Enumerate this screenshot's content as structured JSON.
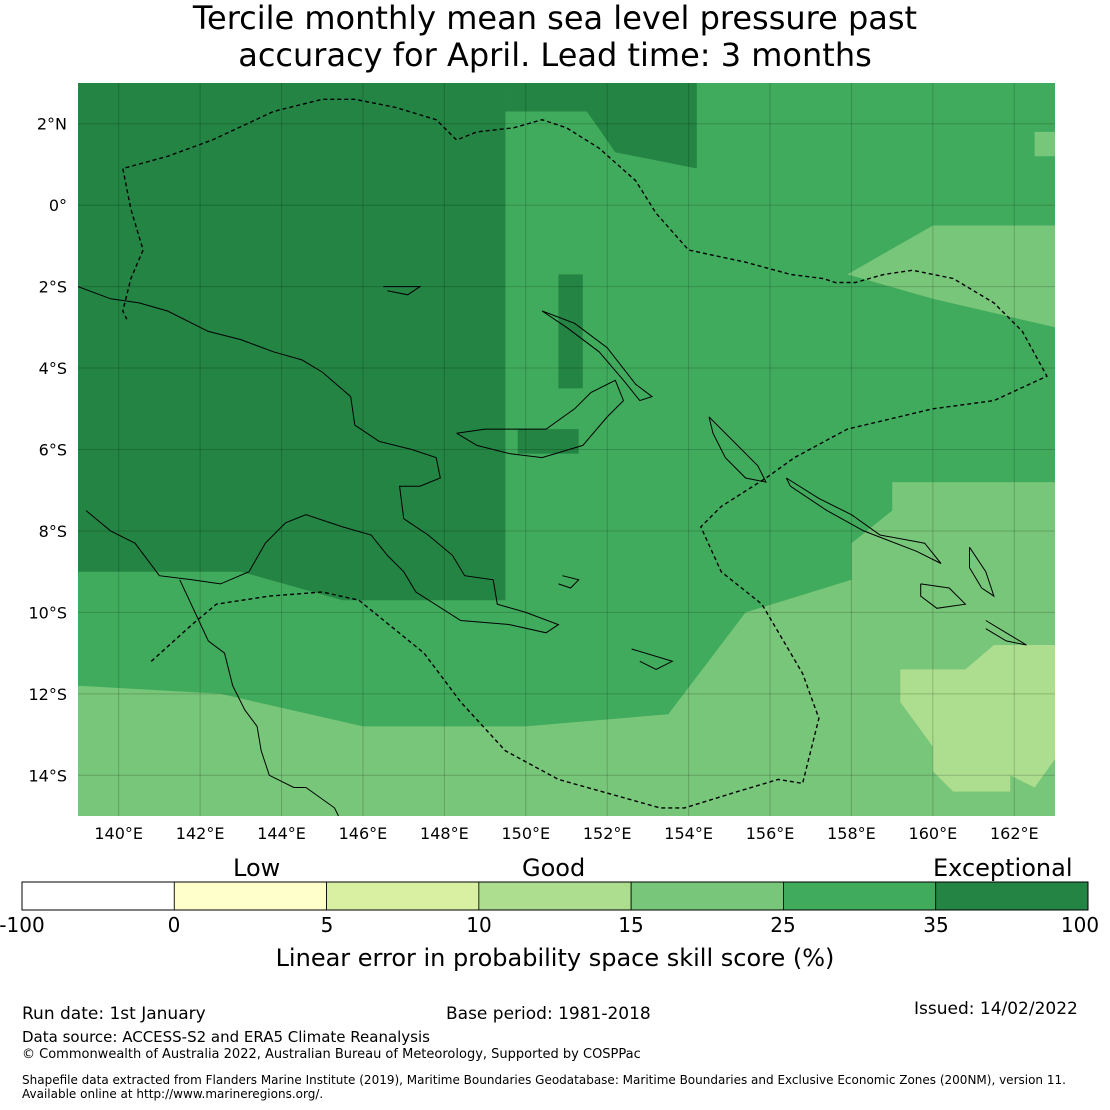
{
  "title": {
    "line1": "Tercile monthly mean sea level pressure past",
    "line2": "accuracy for April. Lead time: 3 months"
  },
  "map": {
    "lon_range": [
      139.0,
      163.0
    ],
    "lat_range": [
      -15.0,
      3.0
    ],
    "lon_ticks": [
      {
        "value": 140,
        "label": "140°E"
      },
      {
        "value": 142,
        "label": "142°E"
      },
      {
        "value": 144,
        "label": "144°E"
      },
      {
        "value": 146,
        "label": "146°E"
      },
      {
        "value": 148,
        "label": "148°E"
      },
      {
        "value": 150,
        "label": "150°E"
      },
      {
        "value": 152,
        "label": "152°E"
      },
      {
        "value": 154,
        "label": "154°E"
      },
      {
        "value": 156,
        "label": "156°E"
      },
      {
        "value": 158,
        "label": "158°E"
      },
      {
        "value": 160,
        "label": "160°E"
      },
      {
        "value": 162,
        "label": "162°E"
      }
    ],
    "lat_ticks": [
      {
        "value": 2,
        "label": "2°N"
      },
      {
        "value": 0,
        "label": "0°"
      },
      {
        "value": -2,
        "label": "2°S"
      },
      {
        "value": -4,
        "label": "4°S"
      },
      {
        "value": -6,
        "label": "6°S"
      },
      {
        "value": -8,
        "label": "8°S"
      },
      {
        "value": -10,
        "label": "10°S"
      },
      {
        "value": -12,
        "label": "12°S"
      },
      {
        "value": -14,
        "label": "14°S"
      }
    ],
    "regions": [
      {
        "name": "exceptional-west",
        "category": 6,
        "polygon": [
          [
            139,
            3
          ],
          [
            149.5,
            3
          ],
          [
            149.5,
            -9.7
          ],
          [
            145.5,
            -9.7
          ],
          [
            143,
            -9
          ],
          [
            139,
            -9
          ]
        ]
      },
      {
        "name": "exceptional-north",
        "category": 6,
        "polygon": [
          [
            149.5,
            3
          ],
          [
            154.2,
            3
          ],
          [
            154.2,
            0.9
          ],
          [
            152.2,
            1.3
          ],
          [
            151.5,
            2.3
          ],
          [
            149.5,
            2.3
          ]
        ]
      },
      {
        "name": "exceptional-central-a",
        "category": 6,
        "polygon": [
          [
            150.8,
            -1.7
          ],
          [
            151.4,
            -1.7
          ],
          [
            151.4,
            -4.5
          ],
          [
            150.8,
            -4.5
          ]
        ]
      },
      {
        "name": "exceptional-central-b",
        "category": 6,
        "polygon": [
          [
            149.8,
            -5.5
          ],
          [
            151.3,
            -5.5
          ],
          [
            151.3,
            -6.1
          ],
          [
            149.8,
            -6.1
          ]
        ]
      },
      {
        "name": "exceptional-central-c",
        "category": 6,
        "polygon": [
          [
            146.5,
            -6.2
          ],
          [
            147.3,
            -6.2
          ],
          [
            147.3,
            -6.7
          ],
          [
            146.5,
            -6.7
          ]
        ]
      },
      {
        "name": "good-east",
        "category": 4,
        "polygon": [
          [
            160,
            -0.5
          ],
          [
            163,
            -0.5
          ],
          [
            163,
            -3
          ],
          [
            160,
            -2.3
          ],
          [
            157.9,
            -1.7
          ]
        ]
      },
      {
        "name": "good-southeast",
        "category": 4,
        "polygon": [
          [
            159,
            -6.8
          ],
          [
            163,
            -6.8
          ],
          [
            163,
            -15
          ],
          [
            139,
            -15
          ],
          [
            139,
            -11.8
          ],
          [
            142.5,
            -12
          ],
          [
            146,
            -12.8
          ],
          [
            150,
            -12.8
          ],
          [
            153.5,
            -12.5
          ],
          [
            155.4,
            -10
          ],
          [
            158,
            -9.2
          ],
          [
            158,
            -8.3
          ],
          [
            159,
            -7.5
          ]
        ]
      },
      {
        "name": "good-east-strip",
        "category": 4,
        "polygon": [
          [
            162.5,
            1.8
          ],
          [
            163,
            1.8
          ],
          [
            163,
            1.2
          ],
          [
            162.5,
            1.2
          ]
        ]
      },
      {
        "name": "fair-southeast",
        "category": 3,
        "polygon": [
          [
            161.5,
            -10.8
          ],
          [
            163,
            -10.8
          ],
          [
            163,
            -13.6
          ],
          [
            162.5,
            -14.3
          ],
          [
            161.9,
            -14
          ],
          [
            161.9,
            -14.4
          ],
          [
            160.5,
            -14.4
          ],
          [
            160,
            -13.9
          ],
          [
            160,
            -13.3
          ],
          [
            159.2,
            -12.2
          ],
          [
            159.2,
            -11.4
          ],
          [
            160.8,
            -11.4
          ]
        ]
      }
    ],
    "boundary": [
      [
        140.8,
        -11.2
      ],
      [
        141.8,
        -10.3
      ],
      [
        142.4,
        -9.8
      ],
      [
        143.7,
        -9.6
      ],
      [
        145,
        -9.5
      ],
      [
        145.9,
        -9.7
      ],
      [
        147.5,
        -11
      ],
      [
        148.4,
        -12.2
      ],
      [
        149.5,
        -13.4
      ],
      [
        150.8,
        -14.1
      ],
      [
        153.3,
        -14.8
      ],
      [
        153.9,
        -14.8
      ],
      [
        155.2,
        -14.4
      ],
      [
        156.2,
        -14.1
      ],
      [
        156.8,
        -14.2
      ],
      [
        157.2,
        -12.6
      ],
      [
        156.8,
        -11.5
      ],
      [
        155.8,
        -9.8
      ],
      [
        154.8,
        -9
      ],
      [
        154.3,
        -7.9
      ],
      [
        154.8,
        -7.4
      ],
      [
        155.9,
        -6.7
      ],
      [
        156.6,
        -6.2
      ],
      [
        157.9,
        -5.5
      ],
      [
        160,
        -5
      ],
      [
        161.5,
        -4.8
      ],
      [
        162.8,
        -4.2
      ],
      [
        162.2,
        -3.1
      ],
      [
        161.5,
        -2.4
      ],
      [
        160.5,
        -1.8
      ],
      [
        159.5,
        -1.6
      ],
      [
        158.8,
        -1.7
      ],
      [
        158.1,
        -1.9
      ],
      [
        157.6,
        -1.9
      ],
      [
        157.3,
        -1.8
      ],
      [
        156.5,
        -1.7
      ],
      [
        155.4,
        -1.4
      ],
      [
        154,
        -1.1
      ],
      [
        153.2,
        -0.2
      ],
      [
        152.7,
        0.6
      ],
      [
        151.8,
        1.4
      ],
      [
        151,
        1.9
      ],
      [
        150.4,
        2.1
      ],
      [
        149.7,
        1.9
      ],
      [
        148.8,
        1.8
      ],
      [
        148.3,
        1.6
      ],
      [
        147.8,
        2.1
      ],
      [
        146.8,
        2.4
      ],
      [
        145.8,
        2.6
      ],
      [
        145,
        2.6
      ],
      [
        143.8,
        2.3
      ],
      [
        142.3,
        1.6
      ],
      [
        141.2,
        1.2
      ],
      [
        140.1,
        0.9
      ],
      [
        140.3,
        -0.1
      ],
      [
        140.6,
        -1.1
      ],
      [
        140.3,
        -1.8
      ],
      [
        140.1,
        -2.6
      ],
      [
        140.2,
        -2.8
      ]
    ],
    "coast_newguinea": [
      [
        139,
        -2
      ],
      [
        139.8,
        -2.3
      ],
      [
        140.5,
        -2.4
      ],
      [
        141.2,
        -2.6
      ],
      [
        142.2,
        -3.1
      ],
      [
        143,
        -3.3
      ],
      [
        143.8,
        -3.6
      ],
      [
        144.5,
        -3.8
      ],
      [
        145,
        -4.1
      ],
      [
        145.7,
        -4.7
      ],
      [
        145.8,
        -5.4
      ],
      [
        146.4,
        -5.8
      ],
      [
        147.2,
        -6
      ],
      [
        147.8,
        -6.2
      ],
      [
        147.9,
        -6.7
      ],
      [
        147.4,
        -6.9
      ],
      [
        146.9,
        -6.9
      ],
      [
        147,
        -7.7
      ],
      [
        147.6,
        -8.1
      ],
      [
        148.2,
        -8.6
      ],
      [
        148.5,
        -9.1
      ],
      [
        149.2,
        -9.2
      ],
      [
        149.3,
        -9.8
      ],
      [
        150,
        -10
      ],
      [
        150.8,
        -10.3
      ],
      [
        150.5,
        -10.5
      ],
      [
        149.6,
        -10.3
      ],
      [
        148.4,
        -10.2
      ],
      [
        147.3,
        -9.5
      ],
      [
        147,
        -9
      ],
      [
        146.6,
        -8.6
      ],
      [
        146.2,
        -8.1
      ],
      [
        145.5,
        -7.9
      ],
      [
        144.6,
        -7.6
      ],
      [
        144.1,
        -7.8
      ],
      [
        143.6,
        -8.3
      ],
      [
        143.2,
        -9
      ],
      [
        142.5,
        -9.3
      ],
      [
        141.8,
        -9.2
      ],
      [
        141,
        -9.1
      ],
      [
        140.4,
        -8.3
      ],
      [
        139.8,
        -8
      ],
      [
        139.2,
        -7.5
      ]
    ],
    "coast_australia": [
      [
        141.5,
        -9.2
      ],
      [
        142.2,
        -10.7
      ],
      [
        142.6,
        -11
      ],
      [
        142.8,
        -11.8
      ],
      [
        143.1,
        -12.4
      ],
      [
        143.4,
        -12.8
      ],
      [
        143.5,
        -13.4
      ],
      [
        143.7,
        -14
      ],
      [
        144.3,
        -14.3
      ],
      [
        144.6,
        -14.3
      ],
      [
        145.3,
        -14.8
      ],
      [
        145.4,
        -15
      ]
    ],
    "coast_newbritain": [
      [
        148.3,
        -5.6
      ],
      [
        149,
        -5.5
      ],
      [
        149.8,
        -5.5
      ],
      [
        150.5,
        -5.5
      ],
      [
        151.2,
        -5
      ],
      [
        151.6,
        -4.6
      ],
      [
        152.2,
        -4.3
      ],
      [
        152.4,
        -4.8
      ],
      [
        152,
        -5.2
      ],
      [
        151.4,
        -5.9
      ],
      [
        150.4,
        -6.2
      ],
      [
        149.6,
        -6.1
      ],
      [
        148.8,
        -5.9
      ],
      [
        148.3,
        -5.6
      ]
    ],
    "coast_newireland": [
      [
        150.4,
        -2.6
      ],
      [
        151.2,
        -2.9
      ],
      [
        152,
        -3.5
      ],
      [
        152.7,
        -4.4
      ],
      [
        153.1,
        -4.7
      ],
      [
        152.8,
        -4.8
      ],
      [
        152.4,
        -4.3
      ],
      [
        151.8,
        -3.6
      ],
      [
        151,
        -3
      ],
      [
        150.4,
        -2.6
      ]
    ],
    "coast_bougainville": [
      [
        154.5,
        -5.2
      ],
      [
        155.2,
        -5.9
      ],
      [
        155.7,
        -6.4
      ],
      [
        155.9,
        -6.8
      ],
      [
        155.4,
        -6.7
      ],
      [
        154.9,
        -6.2
      ],
      [
        154.6,
        -5.6
      ],
      [
        154.5,
        -5.2
      ]
    ],
    "coast_solomon_a": [
      [
        156.4,
        -6.7
      ],
      [
        157.2,
        -7.2
      ],
      [
        158,
        -7.6
      ],
      [
        158.7,
        -8.1
      ],
      [
        159.8,
        -8.3
      ],
      [
        160.2,
        -8.8
      ],
      [
        159.6,
        -8.5
      ],
      [
        158.3,
        -8
      ],
      [
        157.4,
        -7.5
      ],
      [
        156.5,
        -6.9
      ],
      [
        156.4,
        -6.7
      ]
    ],
    "coast_solomon_b": [
      [
        160.9,
        -8.4
      ],
      [
        161.3,
        -9
      ],
      [
        161.5,
        -9.6
      ],
      [
        161.2,
        -9.4
      ],
      [
        160.9,
        -8.9
      ],
      [
        160.9,
        -8.4
      ]
    ],
    "coast_solomon_c": [
      [
        159.7,
        -9.3
      ],
      [
        160.4,
        -9.4
      ],
      [
        160.8,
        -9.8
      ],
      [
        160.1,
        -9.9
      ],
      [
        159.7,
        -9.6
      ],
      [
        159.7,
        -9.3
      ]
    ],
    "coast_solomon_d": [
      [
        161.3,
        -10.2
      ],
      [
        161.8,
        -10.5
      ],
      [
        162.3,
        -10.8
      ],
      [
        161.8,
        -10.7
      ],
      [
        161.3,
        -10.4
      ]
    ],
    "coast_manus": [
      [
        146.5,
        -2
      ],
      [
        147.4,
        -2
      ],
      [
        147.1,
        -2.2
      ],
      [
        146.6,
        -2.1
      ]
    ],
    "coast_lae_islands": [
      [
        150.9,
        -9.1
      ],
      [
        151.3,
        -9.2
      ],
      [
        151.1,
        -9.4
      ],
      [
        150.8,
        -9.3
      ]
    ],
    "coast_louisiade": [
      [
        152.6,
        -10.9
      ],
      [
        153.6,
        -11.2
      ],
      [
        153.2,
        -11.4
      ],
      [
        152.8,
        -11.2
      ]
    ],
    "colorbar": {
      "boundaries": [
        "-100",
        "0",
        "5",
        "10",
        "15",
        "25",
        "35",
        "100"
      ],
      "colors": [
        "#ffffff",
        "#ffffcc",
        "#d9f0a3",
        "#addd8e",
        "#78c679",
        "#41ab5d",
        "#238443"
      ],
      "categories": [
        "Low",
        "Good",
        "Exceptional"
      ],
      "label": "Linear error in probability space skill score (%)"
    },
    "default_category": 5
  },
  "footer": {
    "run_date": "Run date: 1st January",
    "base_period": "Base period: 1981-2018",
    "issued": "Issued: 14/02/2022",
    "data_source": "Data source: ACCESS-S2 and ERA5 Climate Reanalysis",
    "copyright": "© Commonwealth of Australia 2022, Australian Bureau of Meteorology, Supported by COSPPac",
    "shapefile_line1": "Shapefile data extracted from Flanders Marine Institute (2019), Maritime Boundaries Geodatabase: Maritime Boundaries and Exclusive Economic Zones (200NM), version 11.",
    "shapefile_line2": "Available online at http://www.marineregions.org/."
  }
}
